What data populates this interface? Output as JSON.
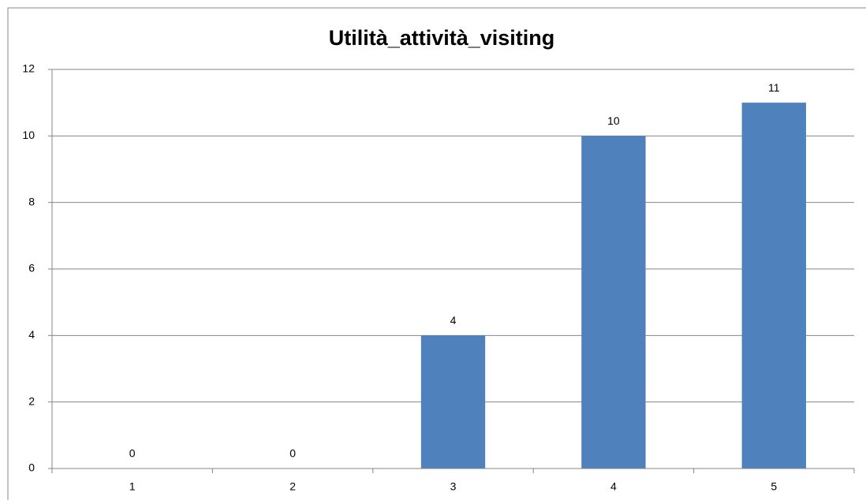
{
  "chart_data": {
    "type": "bar",
    "title": "Utilità_attività_visiting",
    "categories": [
      "1",
      "2",
      "3",
      "4",
      "5"
    ],
    "values": [
      0,
      0,
      4,
      10,
      11
    ],
    "color": "#4f81bd",
    "ylim": [
      0,
      12
    ],
    "yticks": [
      0,
      2,
      4,
      6,
      8,
      10,
      12
    ],
    "grid": true
  }
}
